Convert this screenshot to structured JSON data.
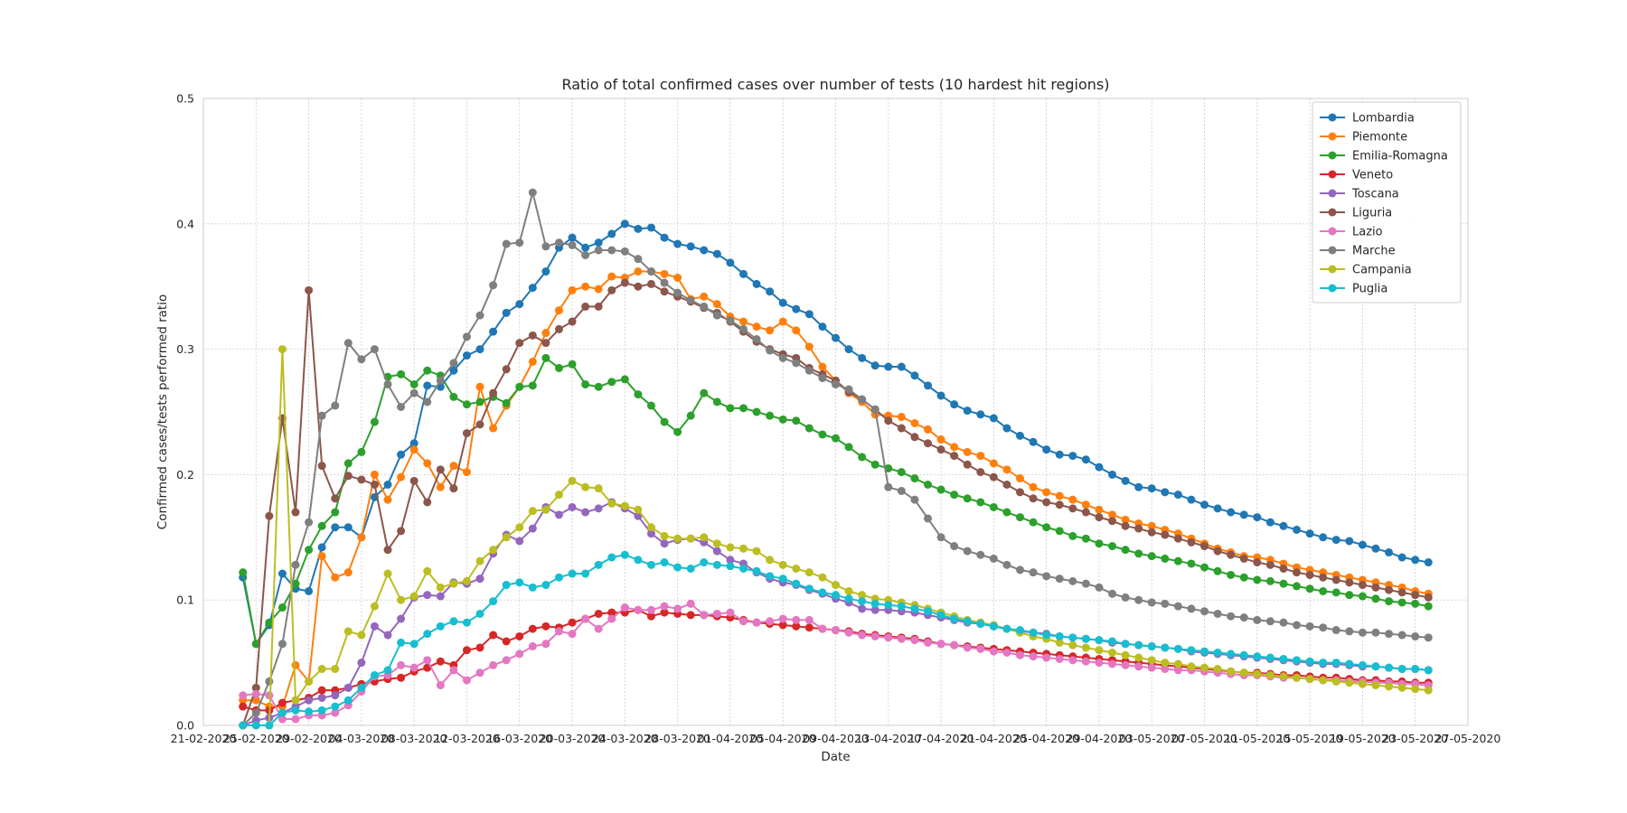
{
  "chart_data": {
    "type": "line",
    "title": "Ratio of total confirmed cases over number of tests (10 hardest hit regions)",
    "xlabel": "Date",
    "ylabel": "Confirmed cases/tests performed ratio",
    "ylim": [
      0,
      0.5
    ],
    "yticks": [
      "0.0",
      "0.1",
      "0.2",
      "0.3",
      "0.4",
      "0.5"
    ],
    "xticks": [
      "21-02-2020",
      "25-02-2020",
      "29-02-2020",
      "04-03-2020",
      "08-03-2020",
      "12-03-2020",
      "16-03-2020",
      "20-03-2020",
      "24-03-2020",
      "28-03-2020",
      "01-04-2020",
      "05-04-2020",
      "09-04-2020",
      "13-04-2020",
      "17-04-2020",
      "21-04-2020",
      "25-04-2020",
      "29-04-2020",
      "03-05-2020",
      "07-05-2020",
      "11-05-2020",
      "15-05-2020",
      "19-05-2020",
      "23-05-2020",
      "27-05-2020"
    ],
    "x_start": "24-02-2020",
    "x_end": "25-05-2020",
    "grid": true,
    "legend_position": "top-right",
    "series": [
      {
        "name": "Lombardia",
        "color": "#1f77b4",
        "values": [
          0.118,
          0.065,
          0.08,
          0.121,
          0.109,
          0.107,
          0.142,
          0.158,
          0.158,
          0.15,
          0.182,
          0.192,
          0.216,
          0.225,
          0.271,
          0.27,
          0.283,
          0.295,
          0.3,
          0.314,
          0.329,
          0.336,
          0.349,
          0.362,
          0.381,
          0.389,
          0.381,
          0.385,
          0.392,
          0.4,
          0.396,
          0.397,
          0.389,
          0.384,
          0.382,
          0.379,
          0.376,
          0.369,
          0.36,
          0.352,
          0.346,
          0.337,
          0.332,
          0.328,
          0.318,
          0.309,
          0.3,
          0.293,
          0.287,
          0.286,
          0.286,
          0.279,
          0.271,
          0.263,
          0.256,
          0.251,
          0.248,
          0.245,
          0.237,
          0.231,
          0.226,
          0.22,
          0.216,
          0.215,
          0.212,
          0.206,
          0.2,
          0.195,
          0.19,
          0.189,
          0.186,
          0.184,
          0.18,
          0.176,
          0.173,
          0.17,
          0.168,
          0.166,
          0.162,
          0.159,
          0.156,
          0.153,
          0.15,
          0.148,
          0.147,
          0.144,
          0.141,
          0.138,
          0.134,
          0.132,
          0.13
        ]
      },
      {
        "name": "Piemonte",
        "color": "#ff7f0e",
        "values": [
          0.02,
          0.02,
          0.015,
          0.015,
          0.048,
          0.035,
          0.135,
          0.118,
          0.122,
          0.15,
          0.2,
          0.18,
          0.198,
          0.22,
          0.209,
          0.19,
          0.207,
          0.202,
          0.27,
          0.237,
          0.255,
          0.27,
          0.29,
          0.313,
          0.331,
          0.347,
          0.35,
          0.348,
          0.358,
          0.357,
          0.362,
          0.362,
          0.36,
          0.357,
          0.34,
          0.342,
          0.336,
          0.326,
          0.322,
          0.318,
          0.315,
          0.322,
          0.315,
          0.302,
          0.286,
          0.275,
          0.265,
          0.258,
          0.248,
          0.247,
          0.246,
          0.241,
          0.236,
          0.228,
          0.222,
          0.218,
          0.215,
          0.209,
          0.204,
          0.197,
          0.19,
          0.186,
          0.183,
          0.18,
          0.176,
          0.172,
          0.168,
          0.164,
          0.161,
          0.159,
          0.156,
          0.153,
          0.149,
          0.145,
          0.141,
          0.138,
          0.135,
          0.134,
          0.132,
          0.129,
          0.126,
          0.124,
          0.122,
          0.12,
          0.118,
          0.116,
          0.114,
          0.112,
          0.11,
          0.107,
          0.105
        ]
      },
      {
        "name": "Emilia-Romagna",
        "color": "#2ca02c",
        "values": [
          0.122,
          0.065,
          0.082,
          0.094,
          0.113,
          0.14,
          0.159,
          0.17,
          0.209,
          0.218,
          0.242,
          0.278,
          0.28,
          0.272,
          0.283,
          0.279,
          0.262,
          0.256,
          0.258,
          0.262,
          0.257,
          0.27,
          0.271,
          0.293,
          0.285,
          0.288,
          0.272,
          0.27,
          0.274,
          0.276,
          0.264,
          0.255,
          0.242,
          0.234,
          0.247,
          0.265,
          0.258,
          0.253,
          0.253,
          0.25,
          0.247,
          0.244,
          0.243,
          0.237,
          0.232,
          0.229,
          0.222,
          0.214,
          0.208,
          0.205,
          0.202,
          0.197,
          0.192,
          0.188,
          0.184,
          0.181,
          0.178,
          0.174,
          0.17,
          0.166,
          0.162,
          0.158,
          0.155,
          0.151,
          0.149,
          0.145,
          0.143,
          0.14,
          0.137,
          0.135,
          0.133,
          0.131,
          0.129,
          0.126,
          0.123,
          0.12,
          0.118,
          0.116,
          0.115,
          0.113,
          0.111,
          0.109,
          0.107,
          0.106,
          0.104,
          0.103,
          0.101,
          0.099,
          0.098,
          0.097,
          0.095
        ]
      },
      {
        "name": "Veneto",
        "color": "#d62728",
        "values": [
          0.015,
          0.012,
          0.012,
          0.018,
          0.02,
          0.022,
          0.028,
          0.028,
          0.03,
          0.033,
          0.035,
          0.037,
          0.038,
          0.043,
          0.046,
          0.051,
          0.048,
          0.06,
          0.062,
          0.072,
          0.067,
          0.071,
          0.077,
          0.079,
          0.078,
          0.082,
          0.085,
          0.089,
          0.09,
          0.09,
          0.092,
          0.087,
          0.09,
          0.089,
          0.088,
          0.088,
          0.087,
          0.086,
          0.084,
          0.082,
          0.081,
          0.08,
          0.079,
          0.078,
          0.077,
          0.076,
          0.075,
          0.073,
          0.072,
          0.071,
          0.07,
          0.069,
          0.067,
          0.065,
          0.064,
          0.063,
          0.062,
          0.061,
          0.06,
          0.059,
          0.058,
          0.057,
          0.056,
          0.055,
          0.054,
          0.053,
          0.052,
          0.051,
          0.05,
          0.049,
          0.048,
          0.047,
          0.046,
          0.045,
          0.044,
          0.043,
          0.042,
          0.042,
          0.041,
          0.04,
          0.04,
          0.039,
          0.038,
          0.038,
          0.037,
          0.036,
          0.036,
          0.035,
          0.035,
          0.034,
          0.034
        ]
      },
      {
        "name": "Toscana",
        "color": "#9467bd",
        "values": [
          0.0,
          0.004,
          0.006,
          0.01,
          0.015,
          0.02,
          0.022,
          0.024,
          0.03,
          0.05,
          0.079,
          0.072,
          0.085,
          0.102,
          0.104,
          0.103,
          0.114,
          0.113,
          0.117,
          0.137,
          0.152,
          0.147,
          0.157,
          0.174,
          0.168,
          0.174,
          0.17,
          0.173,
          0.178,
          0.173,
          0.167,
          0.153,
          0.145,
          0.148,
          0.149,
          0.146,
          0.139,
          0.132,
          0.129,
          0.122,
          0.117,
          0.114,
          0.112,
          0.108,
          0.105,
          0.101,
          0.098,
          0.093,
          0.092,
          0.092,
          0.091,
          0.09,
          0.088,
          0.086,
          0.084,
          0.082,
          0.081,
          0.079,
          0.077,
          0.075,
          0.074,
          0.073,
          0.071,
          0.07,
          0.069,
          0.068,
          0.066,
          0.065,
          0.064,
          0.063,
          0.062,
          0.061,
          0.059,
          0.058,
          0.057,
          0.056,
          0.055,
          0.054,
          0.053,
          0.052,
          0.051,
          0.05,
          0.049,
          0.049,
          0.048,
          0.047,
          0.047,
          0.046,
          0.045,
          0.045,
          0.044
        ]
      },
      {
        "name": "Liguria",
        "color": "#8c564b",
        "values": [
          0.0,
          0.03,
          0.167,
          0.245,
          0.17,
          0.347,
          0.207,
          0.181,
          0.199,
          0.196,
          0.192,
          0.14,
          0.155,
          0.195,
          0.178,
          0.204,
          0.189,
          0.233,
          0.24,
          0.265,
          0.284,
          0.305,
          0.311,
          0.305,
          0.316,
          0.322,
          0.334,
          0.334,
          0.347,
          0.353,
          0.35,
          0.352,
          0.346,
          0.342,
          0.338,
          0.333,
          0.329,
          0.322,
          0.314,
          0.306,
          0.3,
          0.296,
          0.293,
          0.285,
          0.28,
          0.275,
          0.266,
          0.26,
          0.252,
          0.243,
          0.237,
          0.23,
          0.225,
          0.22,
          0.215,
          0.208,
          0.202,
          0.198,
          0.192,
          0.186,
          0.181,
          0.178,
          0.176,
          0.173,
          0.17,
          0.166,
          0.163,
          0.159,
          0.157,
          0.154,
          0.152,
          0.149,
          0.146,
          0.143,
          0.139,
          0.136,
          0.133,
          0.13,
          0.128,
          0.125,
          0.122,
          0.12,
          0.118,
          0.116,
          0.114,
          0.112,
          0.11,
          0.108,
          0.106,
          0.104,
          0.102
        ]
      },
      {
        "name": "Lazio",
        "color": "#e377c2",
        "values": [
          0.024,
          0.025,
          0.024,
          0.005,
          0.005,
          0.008,
          0.008,
          0.01,
          0.016,
          0.027,
          0.039,
          0.04,
          0.048,
          0.046,
          0.052,
          0.032,
          0.044,
          0.036,
          0.042,
          0.048,
          0.052,
          0.057,
          0.063,
          0.065,
          0.075,
          0.073,
          0.085,
          0.077,
          0.085,
          0.094,
          0.092,
          0.092,
          0.095,
          0.093,
          0.097,
          0.088,
          0.089,
          0.09,
          0.083,
          0.082,
          0.083,
          0.085,
          0.084,
          0.084,
          0.077,
          0.076,
          0.074,
          0.072,
          0.071,
          0.07,
          0.069,
          0.068,
          0.066,
          0.065,
          0.064,
          0.062,
          0.061,
          0.059,
          0.058,
          0.056,
          0.055,
          0.054,
          0.053,
          0.052,
          0.051,
          0.05,
          0.049,
          0.048,
          0.047,
          0.046,
          0.045,
          0.044,
          0.044,
          0.043,
          0.042,
          0.041,
          0.04,
          0.04,
          0.039,
          0.038,
          0.038,
          0.037,
          0.036,
          0.036,
          0.035,
          0.035,
          0.034,
          0.034,
          0.033,
          0.033,
          0.032
        ]
      },
      {
        "name": "Marche",
        "color": "#7f7f7f",
        "values": [
          0.0,
          0.01,
          0.035,
          0.065,
          0.128,
          0.162,
          0.247,
          0.255,
          0.305,
          0.292,
          0.3,
          0.272,
          0.254,
          0.265,
          0.258,
          0.275,
          0.289,
          0.31,
          0.327,
          0.351,
          0.384,
          0.385,
          0.425,
          0.382,
          0.385,
          0.383,
          0.375,
          0.379,
          0.379,
          0.378,
          0.372,
          0.362,
          0.353,
          0.345,
          0.339,
          0.334,
          0.327,
          0.323,
          0.316,
          0.308,
          0.299,
          0.293,
          0.289,
          0.283,
          0.277,
          0.272,
          0.268,
          0.26,
          0.252,
          0.19,
          0.187,
          0.18,
          0.165,
          0.15,
          0.143,
          0.139,
          0.136,
          0.133,
          0.128,
          0.124,
          0.122,
          0.119,
          0.117,
          0.115,
          0.113,
          0.11,
          0.105,
          0.102,
          0.1,
          0.098,
          0.097,
          0.095,
          0.093,
          0.091,
          0.089,
          0.087,
          0.086,
          0.084,
          0.083,
          0.082,
          0.08,
          0.079,
          0.078,
          0.076,
          0.075,
          0.074,
          0.074,
          0.073,
          0.072,
          0.071,
          0.07
        ]
      },
      {
        "name": "Campania",
        "color": "#bcbd22",
        "values": [
          0.0,
          0.0,
          0.0,
          0.3,
          0.02,
          0.035,
          0.045,
          0.045,
          0.075,
          0.072,
          0.095,
          0.121,
          0.1,
          0.103,
          0.123,
          0.11,
          0.113,
          0.115,
          0.131,
          0.14,
          0.15,
          0.158,
          0.171,
          0.172,
          0.184,
          0.195,
          0.19,
          0.189,
          0.177,
          0.175,
          0.172,
          0.158,
          0.151,
          0.149,
          0.149,
          0.15,
          0.145,
          0.142,
          0.141,
          0.139,
          0.132,
          0.128,
          0.125,
          0.122,
          0.118,
          0.112,
          0.107,
          0.104,
          0.101,
          0.1,
          0.098,
          0.096,
          0.093,
          0.09,
          0.087,
          0.084,
          0.082,
          0.08,
          0.077,
          0.074,
          0.071,
          0.069,
          0.066,
          0.064,
          0.062,
          0.06,
          0.058,
          0.056,
          0.054,
          0.052,
          0.05,
          0.049,
          0.047,
          0.046,
          0.045,
          0.043,
          0.042,
          0.041,
          0.04,
          0.039,
          0.038,
          0.037,
          0.036,
          0.035,
          0.034,
          0.033,
          0.032,
          0.031,
          0.03,
          0.029,
          0.028
        ]
      },
      {
        "name": "Puglia",
        "color": "#17becf",
        "values": [
          0.0,
          0.0,
          0.0,
          0.01,
          0.012,
          0.011,
          0.012,
          0.015,
          0.02,
          0.03,
          0.04,
          0.044,
          0.066,
          0.065,
          0.073,
          0.079,
          0.083,
          0.082,
          0.089,
          0.099,
          0.112,
          0.114,
          0.11,
          0.112,
          0.118,
          0.121,
          0.121,
          0.128,
          0.134,
          0.136,
          0.132,
          0.128,
          0.13,
          0.126,
          0.125,
          0.13,
          0.128,
          0.127,
          0.125,
          0.123,
          0.119,
          0.117,
          0.113,
          0.109,
          0.106,
          0.104,
          0.101,
          0.099,
          0.097,
          0.096,
          0.095,
          0.093,
          0.091,
          0.088,
          0.085,
          0.083,
          0.081,
          0.079,
          0.077,
          0.076,
          0.074,
          0.072,
          0.071,
          0.07,
          0.069,
          0.068,
          0.067,
          0.065,
          0.064,
          0.063,
          0.062,
          0.061,
          0.06,
          0.059,
          0.058,
          0.057,
          0.056,
          0.055,
          0.054,
          0.053,
          0.052,
          0.051,
          0.05,
          0.05,
          0.049,
          0.048,
          0.047,
          0.046,
          0.045,
          0.045,
          0.044
        ]
      }
    ]
  }
}
